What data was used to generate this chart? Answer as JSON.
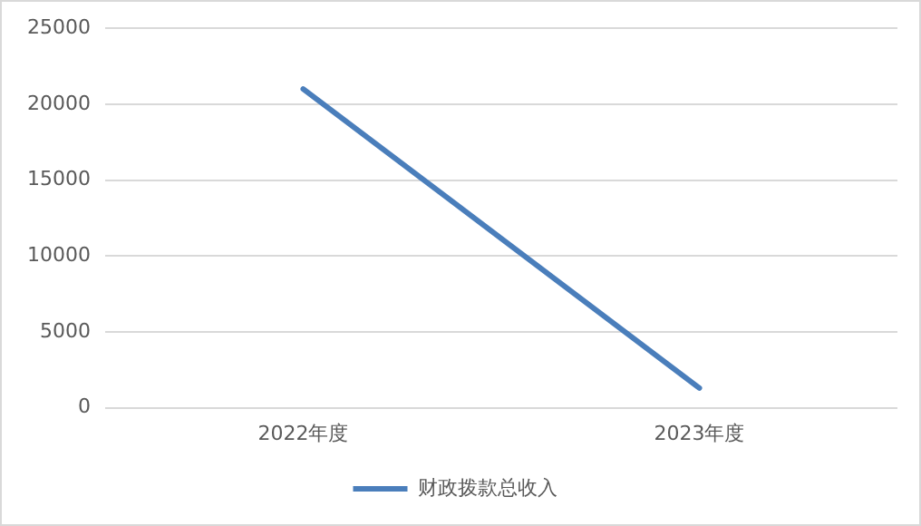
{
  "chart_data": {
    "type": "line",
    "categories": [
      "2022年度",
      "2023年度"
    ],
    "series": [
      {
        "name": "财政拨款总收入",
        "color": "#4a7ebb",
        "values": [
          21000,
          1300
        ]
      }
    ],
    "ylim": [
      0,
      25000
    ],
    "yticks": [
      0,
      5000,
      10000,
      15000,
      20000,
      25000
    ],
    "grid": "y",
    "legend": "bottom",
    "marker": "none",
    "line_style": "solid"
  }
}
